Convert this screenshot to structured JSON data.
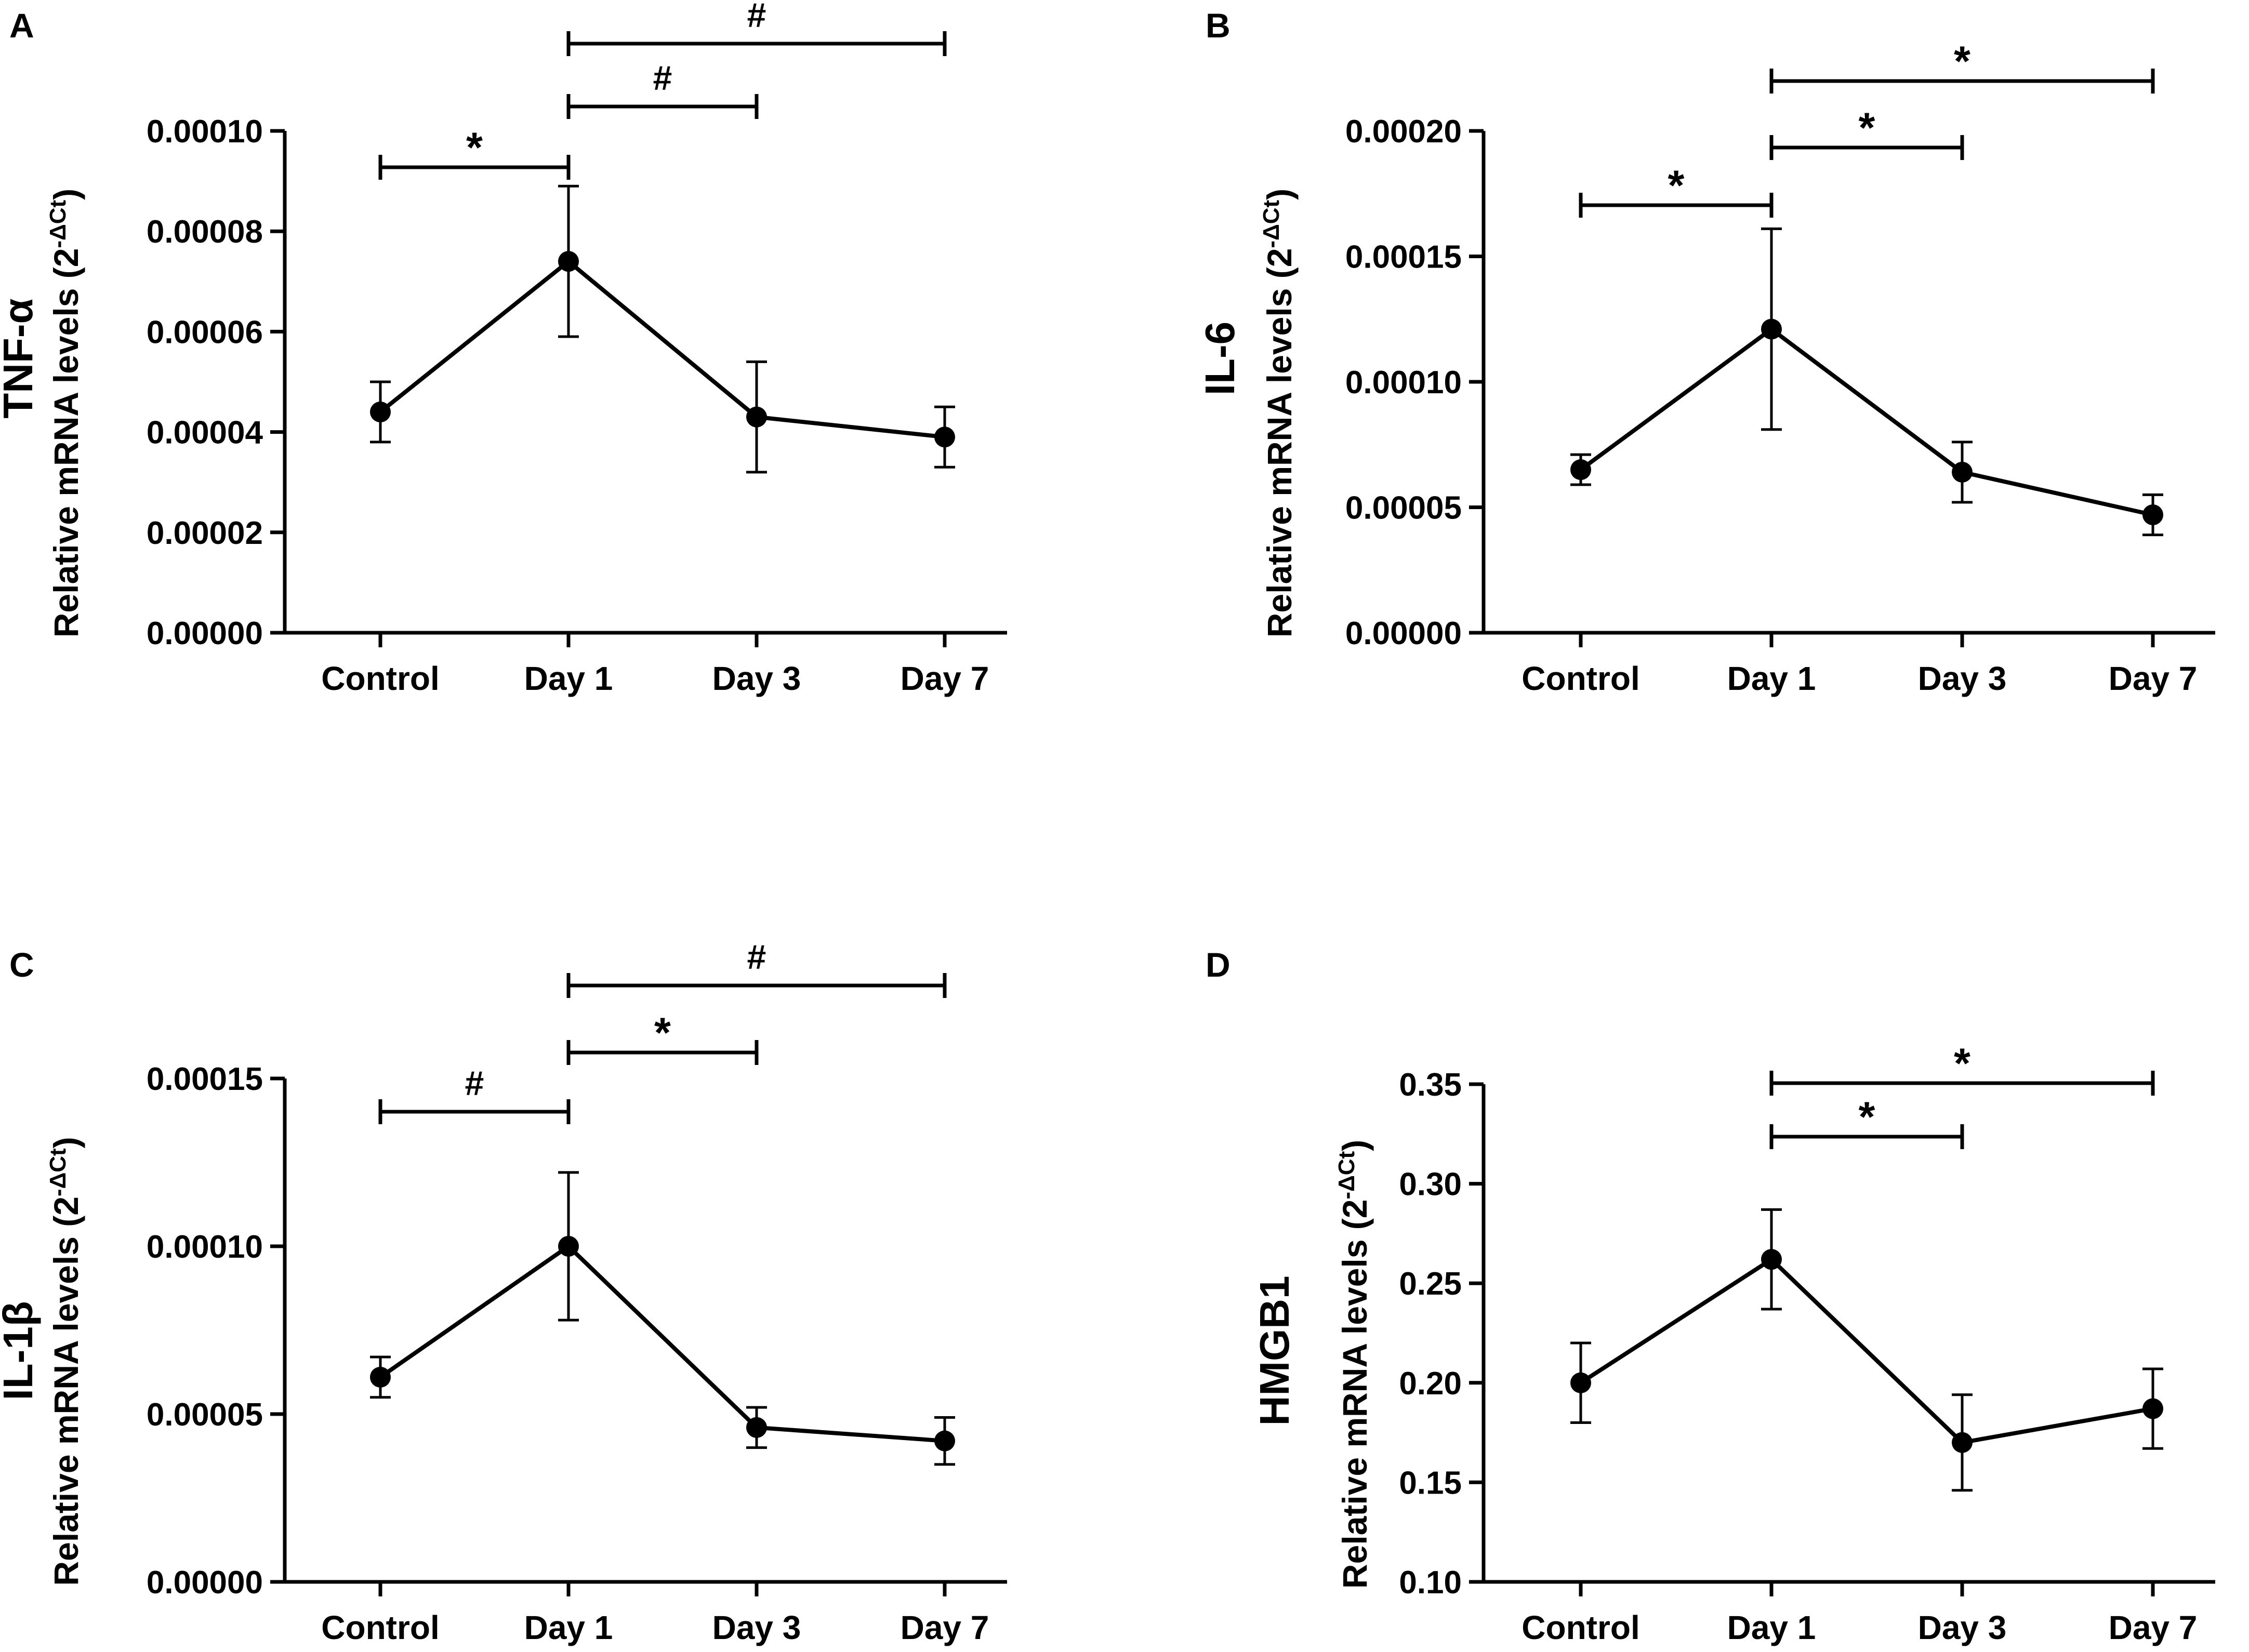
{
  "chart_data": [
    {
      "panel": "A",
      "type": "line",
      "gene_label": "TNF-α",
      "ylabel": "Relative mRNA levels (2",
      "ylabel_sup": "-ΔCt",
      "ylabel_close": ")",
      "categories": [
        "Control",
        "Day 1",
        "Day 3",
        "Day 7"
      ],
      "values": [
        4.4e-05,
        7.4e-05,
        4.3e-05,
        3.9e-05
      ],
      "errors": [
        6e-06,
        1.5e-05,
        1.1e-05,
        6e-06
      ],
      "ylim": [
        0,
        0.0001
      ],
      "yticks": [
        0,
        2e-05,
        4e-05,
        6e-05,
        8e-05,
        0.0001
      ],
      "ytick_labels": [
        "0.00000",
        "0.00002",
        "0.00004",
        "0.00006",
        "0.00008",
        "0.00010"
      ],
      "significance": [
        {
          "from": 0,
          "to": 1,
          "mark": "*",
          "level": 0
        },
        {
          "from": 1,
          "to": 2,
          "mark": "#",
          "level": 1
        },
        {
          "from": 1,
          "to": 3,
          "mark": "#",
          "level": 2
        }
      ]
    },
    {
      "panel": "B",
      "type": "line",
      "gene_label": "IL-6",
      "ylabel": "Relative mRNA levels (2",
      "ylabel_sup": "-ΔCt",
      "ylabel_close": ")",
      "categories": [
        "Control",
        "Day 1",
        "Day 3",
        "Day 7"
      ],
      "values": [
        6.5e-05,
        0.000121,
        6.4e-05,
        4.7e-05
      ],
      "errors": [
        6e-06,
        4e-05,
        1.2e-05,
        8e-06
      ],
      "ylim": [
        0,
        0.0002
      ],
      "yticks": [
        0,
        5e-05,
        0.0001,
        0.00015,
        0.0002
      ],
      "ytick_labels": [
        "0.00000",
        "0.00005",
        "0.00010",
        "0.00015",
        "0.00020"
      ],
      "significance": [
        {
          "from": 0,
          "to": 1,
          "mark": "*",
          "level": 0
        },
        {
          "from": 1,
          "to": 2,
          "mark": "*",
          "level": 1
        },
        {
          "from": 1,
          "to": 3,
          "mark": "*",
          "level": 2
        }
      ]
    },
    {
      "panel": "C",
      "type": "line",
      "gene_label": "IL-1β",
      "ylabel": "Relative mRNA levels (2",
      "ylabel_sup": "-ΔCt",
      "ylabel_close": ")",
      "categories": [
        "Control",
        "Day 1",
        "Day 3",
        "Day 7"
      ],
      "values": [
        6.1e-05,
        0.0001,
        4.6e-05,
        4.2e-05
      ],
      "errors": [
        6e-06,
        2.2e-05,
        6e-06,
        7e-06
      ],
      "ylim": [
        0,
        0.00015
      ],
      "yticks": [
        0,
        5e-05,
        0.0001,
        0.00015
      ],
      "ytick_labels": [
        "0.00000",
        "0.00005",
        "0.00010",
        "0.00015"
      ],
      "significance": [
        {
          "from": 0,
          "to": 1,
          "mark": "#",
          "level": 0
        },
        {
          "from": 1,
          "to": 2,
          "mark": "*",
          "level": 1
        },
        {
          "from": 1,
          "to": 3,
          "mark": "#",
          "level": 2
        }
      ]
    },
    {
      "panel": "D",
      "type": "line",
      "gene_label": "HMGB1",
      "ylabel": "Relative mRNA levels (2",
      "ylabel_sup": "-ΔCt",
      "ylabel_close": ")",
      "categories": [
        "Control",
        "Day 1",
        "Day 3",
        "Day 7"
      ],
      "values": [
        0.2,
        0.262,
        0.17,
        0.187
      ],
      "errors": [
        0.02,
        0.025,
        0.024,
        0.02
      ],
      "ylim": [
        0.1,
        0.35
      ],
      "yticks": [
        0.1,
        0.15,
        0.2,
        0.25,
        0.3,
        0.35
      ],
      "ytick_labels": [
        "0.10",
        "0.15",
        "0.20",
        "0.25",
        "0.30",
        "0.35"
      ],
      "significance": [
        {
          "from": 1,
          "to": 2,
          "mark": "*",
          "level": 1
        },
        {
          "from": 1,
          "to": 3,
          "mark": "*",
          "level": 2
        }
      ]
    }
  ]
}
